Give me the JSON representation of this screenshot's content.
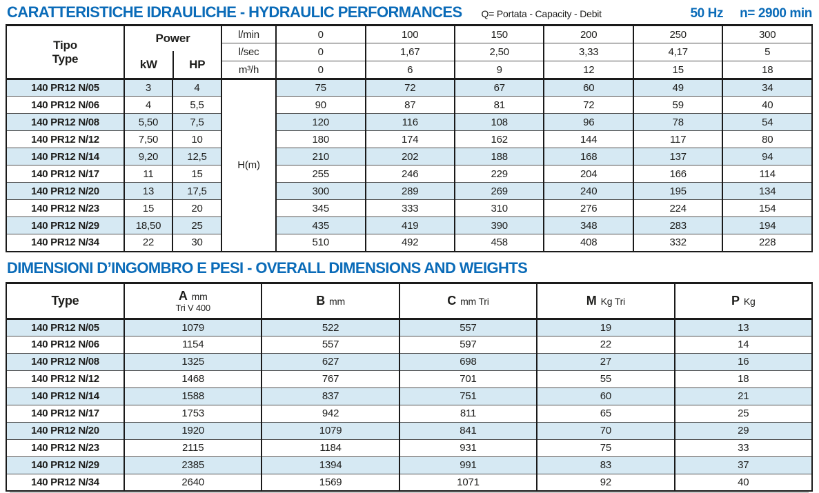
{
  "header": {
    "title": "CARATTERISTICHE IDRAULICHE - HYDRAULIC PERFORMANCES",
    "flow_legend": "Q= Portata - Capacity - Debit",
    "frequency": "50 Hz",
    "speed": "n= 2900 min"
  },
  "colors": {
    "accent_blue": "#0a6bb8",
    "stripe_blue": "#d6e9f3",
    "border_dark": "#1a1a1a"
  },
  "hydraulic_table": {
    "type_header": {
      "line1": "Tipo",
      "line2": "Type"
    },
    "power_header": {
      "label": "Power",
      "kw": "kW",
      "hp": "HP"
    },
    "flow_rows": [
      {
        "unit": "l/min",
        "values": [
          "0",
          "100",
          "150",
          "200",
          "250",
          "300"
        ]
      },
      {
        "unit": "l/sec",
        "values": [
          "0",
          "1,67",
          "2,50",
          "3,33",
          "4,17",
          "5"
        ]
      },
      {
        "unit": "m³/h",
        "values": [
          "0",
          "6",
          "9",
          "12",
          "15",
          "18"
        ]
      }
    ],
    "head_label": "H(m)",
    "rows": [
      {
        "type": "140 PR12 N/05",
        "kw": "3",
        "hp": "4",
        "heads": [
          "75",
          "72",
          "67",
          "60",
          "49",
          "34"
        ]
      },
      {
        "type": "140 PR12 N/06",
        "kw": "4",
        "hp": "5,5",
        "heads": [
          "90",
          "87",
          "81",
          "72",
          "59",
          "40"
        ]
      },
      {
        "type": "140 PR12 N/08",
        "kw": "5,50",
        "hp": "7,5",
        "heads": [
          "120",
          "116",
          "108",
          "96",
          "78",
          "54"
        ]
      },
      {
        "type": "140 PR12 N/12",
        "kw": "7,50",
        "hp": "10",
        "heads": [
          "180",
          "174",
          "162",
          "144",
          "117",
          "80"
        ]
      },
      {
        "type": "140 PR12 N/14",
        "kw": "9,20",
        "hp": "12,5",
        "heads": [
          "210",
          "202",
          "188",
          "168",
          "137",
          "94"
        ]
      },
      {
        "type": "140 PR12 N/17",
        "kw": "11",
        "hp": "15",
        "heads": [
          "255",
          "246",
          "229",
          "204",
          "166",
          "114"
        ]
      },
      {
        "type": "140 PR12 N/20",
        "kw": "13",
        "hp": "17,5",
        "heads": [
          "300",
          "289",
          "269",
          "240",
          "195",
          "134"
        ]
      },
      {
        "type": "140 PR12 N/23",
        "kw": "15",
        "hp": "20",
        "heads": [
          "345",
          "333",
          "310",
          "276",
          "224",
          "154"
        ]
      },
      {
        "type": "140 PR12 N/29",
        "kw": "18,50",
        "hp": "25",
        "heads": [
          "435",
          "419",
          "390",
          "348",
          "283",
          "194"
        ]
      },
      {
        "type": "140 PR12 N/34",
        "kw": "22",
        "hp": "30",
        "heads": [
          "510",
          "492",
          "458",
          "408",
          "332",
          "228"
        ]
      }
    ]
  },
  "dimensions": {
    "title": "DIMENSIONI D’INGOMBRO E PESI - OVERALL DIMENSIONS AND WEIGHTS",
    "columns": [
      {
        "label": "Type",
        "unit": "",
        "sub": ""
      },
      {
        "label": "A",
        "unit": "mm",
        "sub": "Tri V 400"
      },
      {
        "label": "B",
        "unit": "mm",
        "sub": ""
      },
      {
        "label": "C",
        "unit": "mm Tri",
        "sub": ""
      },
      {
        "label": "M",
        "unit": "Kg Tri",
        "sub": ""
      },
      {
        "label": "P",
        "unit": "Kg",
        "sub": ""
      }
    ],
    "rows": [
      {
        "type": "140 PR12 N/05",
        "a": "1079",
        "b": "522",
        "c": "557",
        "m": "19",
        "p": "13"
      },
      {
        "type": "140 PR12 N/06",
        "a": "1154",
        "b": "557",
        "c": "597",
        "m": "22",
        "p": "14"
      },
      {
        "type": "140 PR12 N/08",
        "a": "1325",
        "b": "627",
        "c": "698",
        "m": "27",
        "p": "16"
      },
      {
        "type": "140 PR12 N/12",
        "a": "1468",
        "b": "767",
        "c": "701",
        "m": "55",
        "p": "18"
      },
      {
        "type": "140 PR12 N/14",
        "a": "1588",
        "b": "837",
        "c": "751",
        "m": "60",
        "p": "21"
      },
      {
        "type": "140 PR12 N/17",
        "a": "1753",
        "b": "942",
        "c": "811",
        "m": "65",
        "p": "25"
      },
      {
        "type": "140 PR12 N/20",
        "a": "1920",
        "b": "1079",
        "c": "841",
        "m": "70",
        "p": "29"
      },
      {
        "type": "140 PR12 N/23",
        "a": "2115",
        "b": "1184",
        "c": "931",
        "m": "75",
        "p": "33"
      },
      {
        "type": "140 PR12 N/29",
        "a": "2385",
        "b": "1394",
        "c": "991",
        "m": "83",
        "p": "37"
      },
      {
        "type": "140 PR12 N/34",
        "a": "2640",
        "b": "1569",
        "c": "1071",
        "m": "92",
        "p": "40"
      }
    ]
  }
}
